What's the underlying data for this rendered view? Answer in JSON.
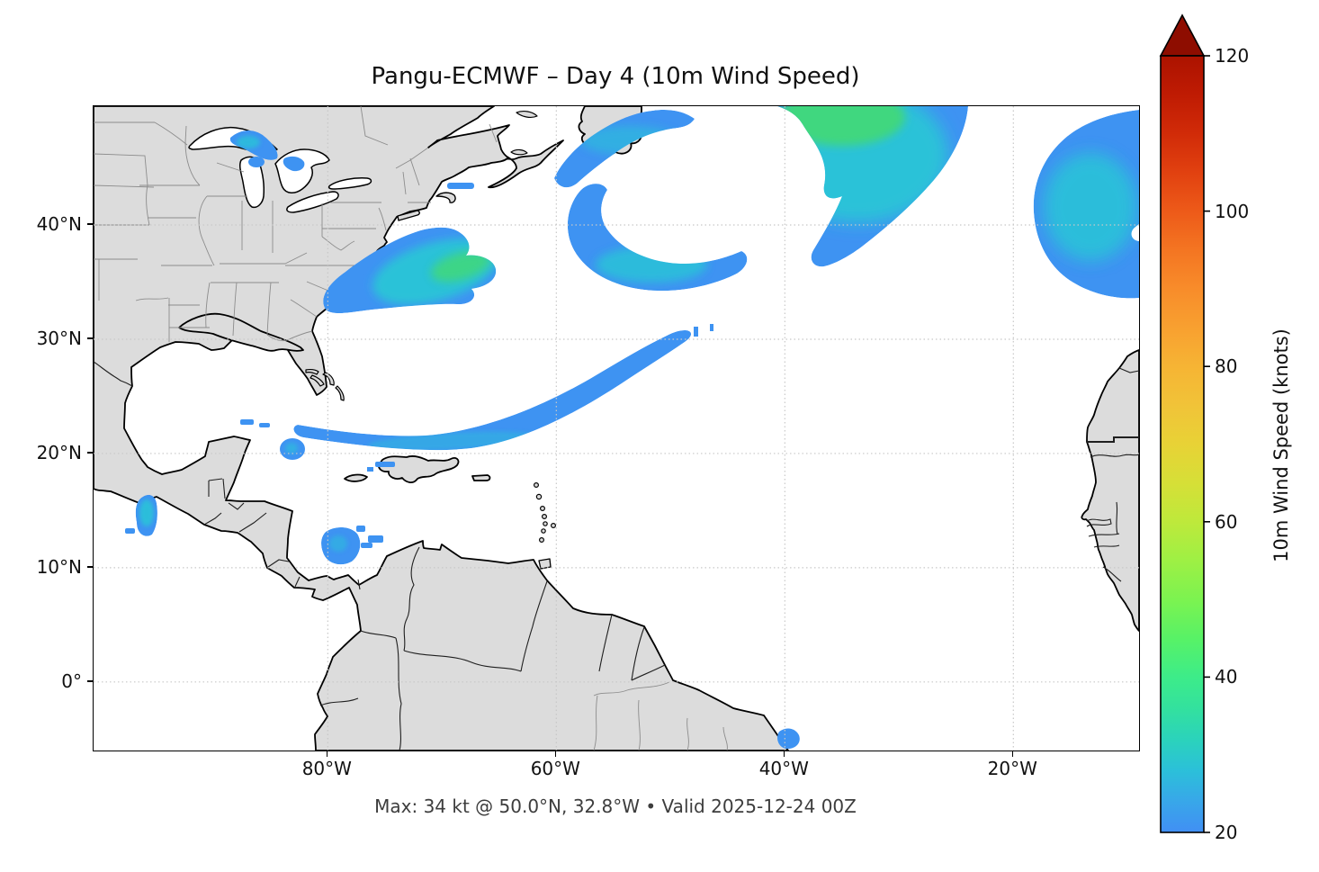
{
  "title": "Pangu-ECMWF – Day 4 (10m Wind Speed)",
  "caption": "Max: 34 kt @ 50.0°N, 32.8°W • Valid 2025-12-24 00Z",
  "axes": {
    "x_ticks": [
      {
        "lon": -80,
        "label": "80°W"
      },
      {
        "lon": -60,
        "label": "60°W"
      },
      {
        "lon": -40,
        "label": "40°W"
      },
      {
        "lon": -20,
        "label": "20°W"
      }
    ],
    "y_ticks": [
      {
        "lat": 40,
        "label": "40°N"
      },
      {
        "lat": 30,
        "label": "30°N"
      },
      {
        "lat": 20,
        "label": "20°N"
      },
      {
        "lat": 10,
        "label": "10°N"
      },
      {
        "lat": 0,
        "label": "0°"
      }
    ]
  },
  "colorbar": {
    "label": "10m Wind Speed (knots)",
    "min": 20,
    "max": 120,
    "ticks": [
      20,
      40,
      60,
      80,
      100,
      120
    ],
    "extend": "max",
    "arrow_color": "#8E0D00",
    "stops": [
      [
        20,
        "#418FF4"
      ],
      [
        24,
        "#38A7E9"
      ],
      [
        28,
        "#2BC0D9"
      ],
      [
        32,
        "#2BD3BB"
      ],
      [
        36,
        "#33E19E"
      ],
      [
        40,
        "#3DEC89"
      ],
      [
        45,
        "#58F266"
      ],
      [
        50,
        "#7CF350"
      ],
      [
        55,
        "#9EF044"
      ],
      [
        60,
        "#BEE93B"
      ],
      [
        65,
        "#D6DF37"
      ],
      [
        70,
        "#E8D236"
      ],
      [
        75,
        "#F1C338"
      ],
      [
        80,
        "#F6B434"
      ],
      [
        85,
        "#F8A030"
      ],
      [
        90,
        "#F88C2A"
      ],
      [
        95,
        "#F47522"
      ],
      [
        100,
        "#ED5A19"
      ],
      [
        105,
        "#E14110"
      ],
      [
        110,
        "#D12B08"
      ],
      [
        115,
        "#BF1B03"
      ],
      [
        120,
        "#AC1300"
      ]
    ]
  },
  "colors": {
    "land": "#dcdcdc",
    "coastline": "#000000",
    "state_border": "#8c8c8c",
    "country_border": "#1f1f1f",
    "grid": "#c8c8c8",
    "wind_blue": "#3E93F2",
    "wind_cyan": "#29C2D8",
    "wind_teal": "#2FD7A4",
    "wind_green": "#41D77F"
  },
  "chart_data": {
    "type": "heatmap",
    "title": "Pangu-ECMWF – Day 4 (10m Wind Speed)",
    "model": "Pangu-ECMWF",
    "lead_time": "Day 4",
    "variable": "10m Wind Speed",
    "units": "knots",
    "valid_time": "2025-12-24 00Z",
    "max": {
      "value_kt": 34,
      "lat": 50.0,
      "lon": -32.8
    },
    "colorbar_range": [
      20,
      120
    ],
    "colorbar_ticks": [
      20,
      40,
      60,
      80,
      100,
      120
    ],
    "map_extent": {
      "lon": [
        -100.5,
        -9.0
      ],
      "lat": [
        -6.0,
        50.4
      ]
    },
    "grid": "dotted, 10-degree latitude / 20-degree longitude",
    "legend_position": "right vertical colorbar",
    "wind_features": [
      {
        "name": "north-atlantic-band",
        "center": {
          "lat": 48,
          "lon": -33
        },
        "peak_kt": 34
      },
      {
        "name": "gulf-stream-offshore-blob",
        "center": {
          "lat": 36,
          "lon": -68
        },
        "peak_kt": 32
      },
      {
        "name": "central-atlantic-swirl",
        "center": {
          "lat": 43,
          "lon": -50
        },
        "peak_kt": 30
      },
      {
        "name": "east-atlantic-blob",
        "center": {
          "lat": 38,
          "lon": -13
        },
        "peak_kt": 30
      },
      {
        "name": "subtropical-arc-bahamas-to-midatlantic",
        "center": {
          "lat": 25,
          "lon": -62
        },
        "peak_kt": 24
      },
      {
        "name": "tehuantepec-gap-wind",
        "center": {
          "lat": 15,
          "lon": -96
        },
        "peak_kt": 30
      },
      {
        "name": "sw-caribbean-blob",
        "center": {
          "lat": 12.5,
          "lon": -80.5
        },
        "peak_kt": 26
      },
      {
        "name": "great-lakes-blob",
        "center": {
          "lat": 46.5,
          "lon": -86
        },
        "peak_kt": 28
      },
      {
        "name": "south-of-west-cuba-spot",
        "center": {
          "lat": 20,
          "lon": -83.5
        },
        "peak_kt": 23
      },
      {
        "name": "ne-brazil-coast-spot",
        "center": {
          "lat": -5,
          "lon": -39.5
        },
        "peak_kt": 22
      }
    ]
  }
}
